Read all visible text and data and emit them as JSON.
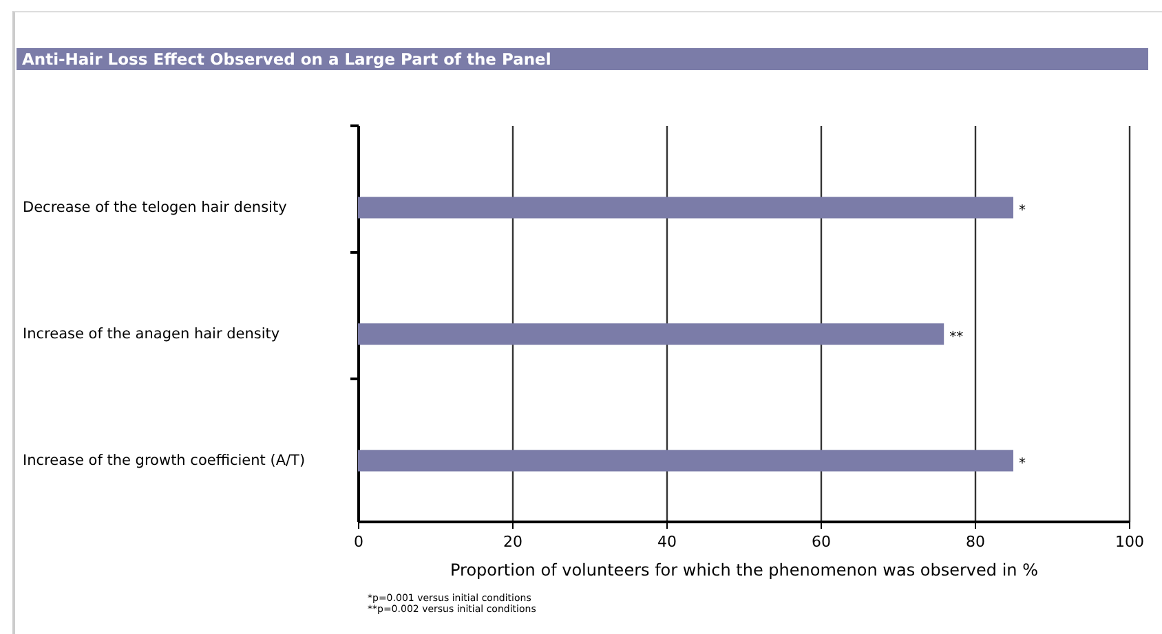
{
  "chart_data": {
    "type": "bar",
    "orientation": "horizontal",
    "title": "Anti-Hair Loss Effect Observed on a Large Part of the Panel",
    "categories": [
      "Decrease of the telogen hair density",
      "Increase of the anagen hair density",
      "Increase of the growth coefficient (A/T)"
    ],
    "values": [
      85,
      76,
      85
    ],
    "value_labels": [
      "*",
      "**",
      "*"
    ],
    "color": "#7b7ca8",
    "xlim": [
      0,
      100
    ],
    "xticks": [
      0,
      20,
      40,
      60,
      80,
      100
    ],
    "grid": "x",
    "xlabel": "Proportion of volunteers for which the phenomenon was observed in %",
    "annotations": [
      "*p=0.001 versus initial conditions",
      "**p=0.002 versus initial conditions"
    ]
  }
}
